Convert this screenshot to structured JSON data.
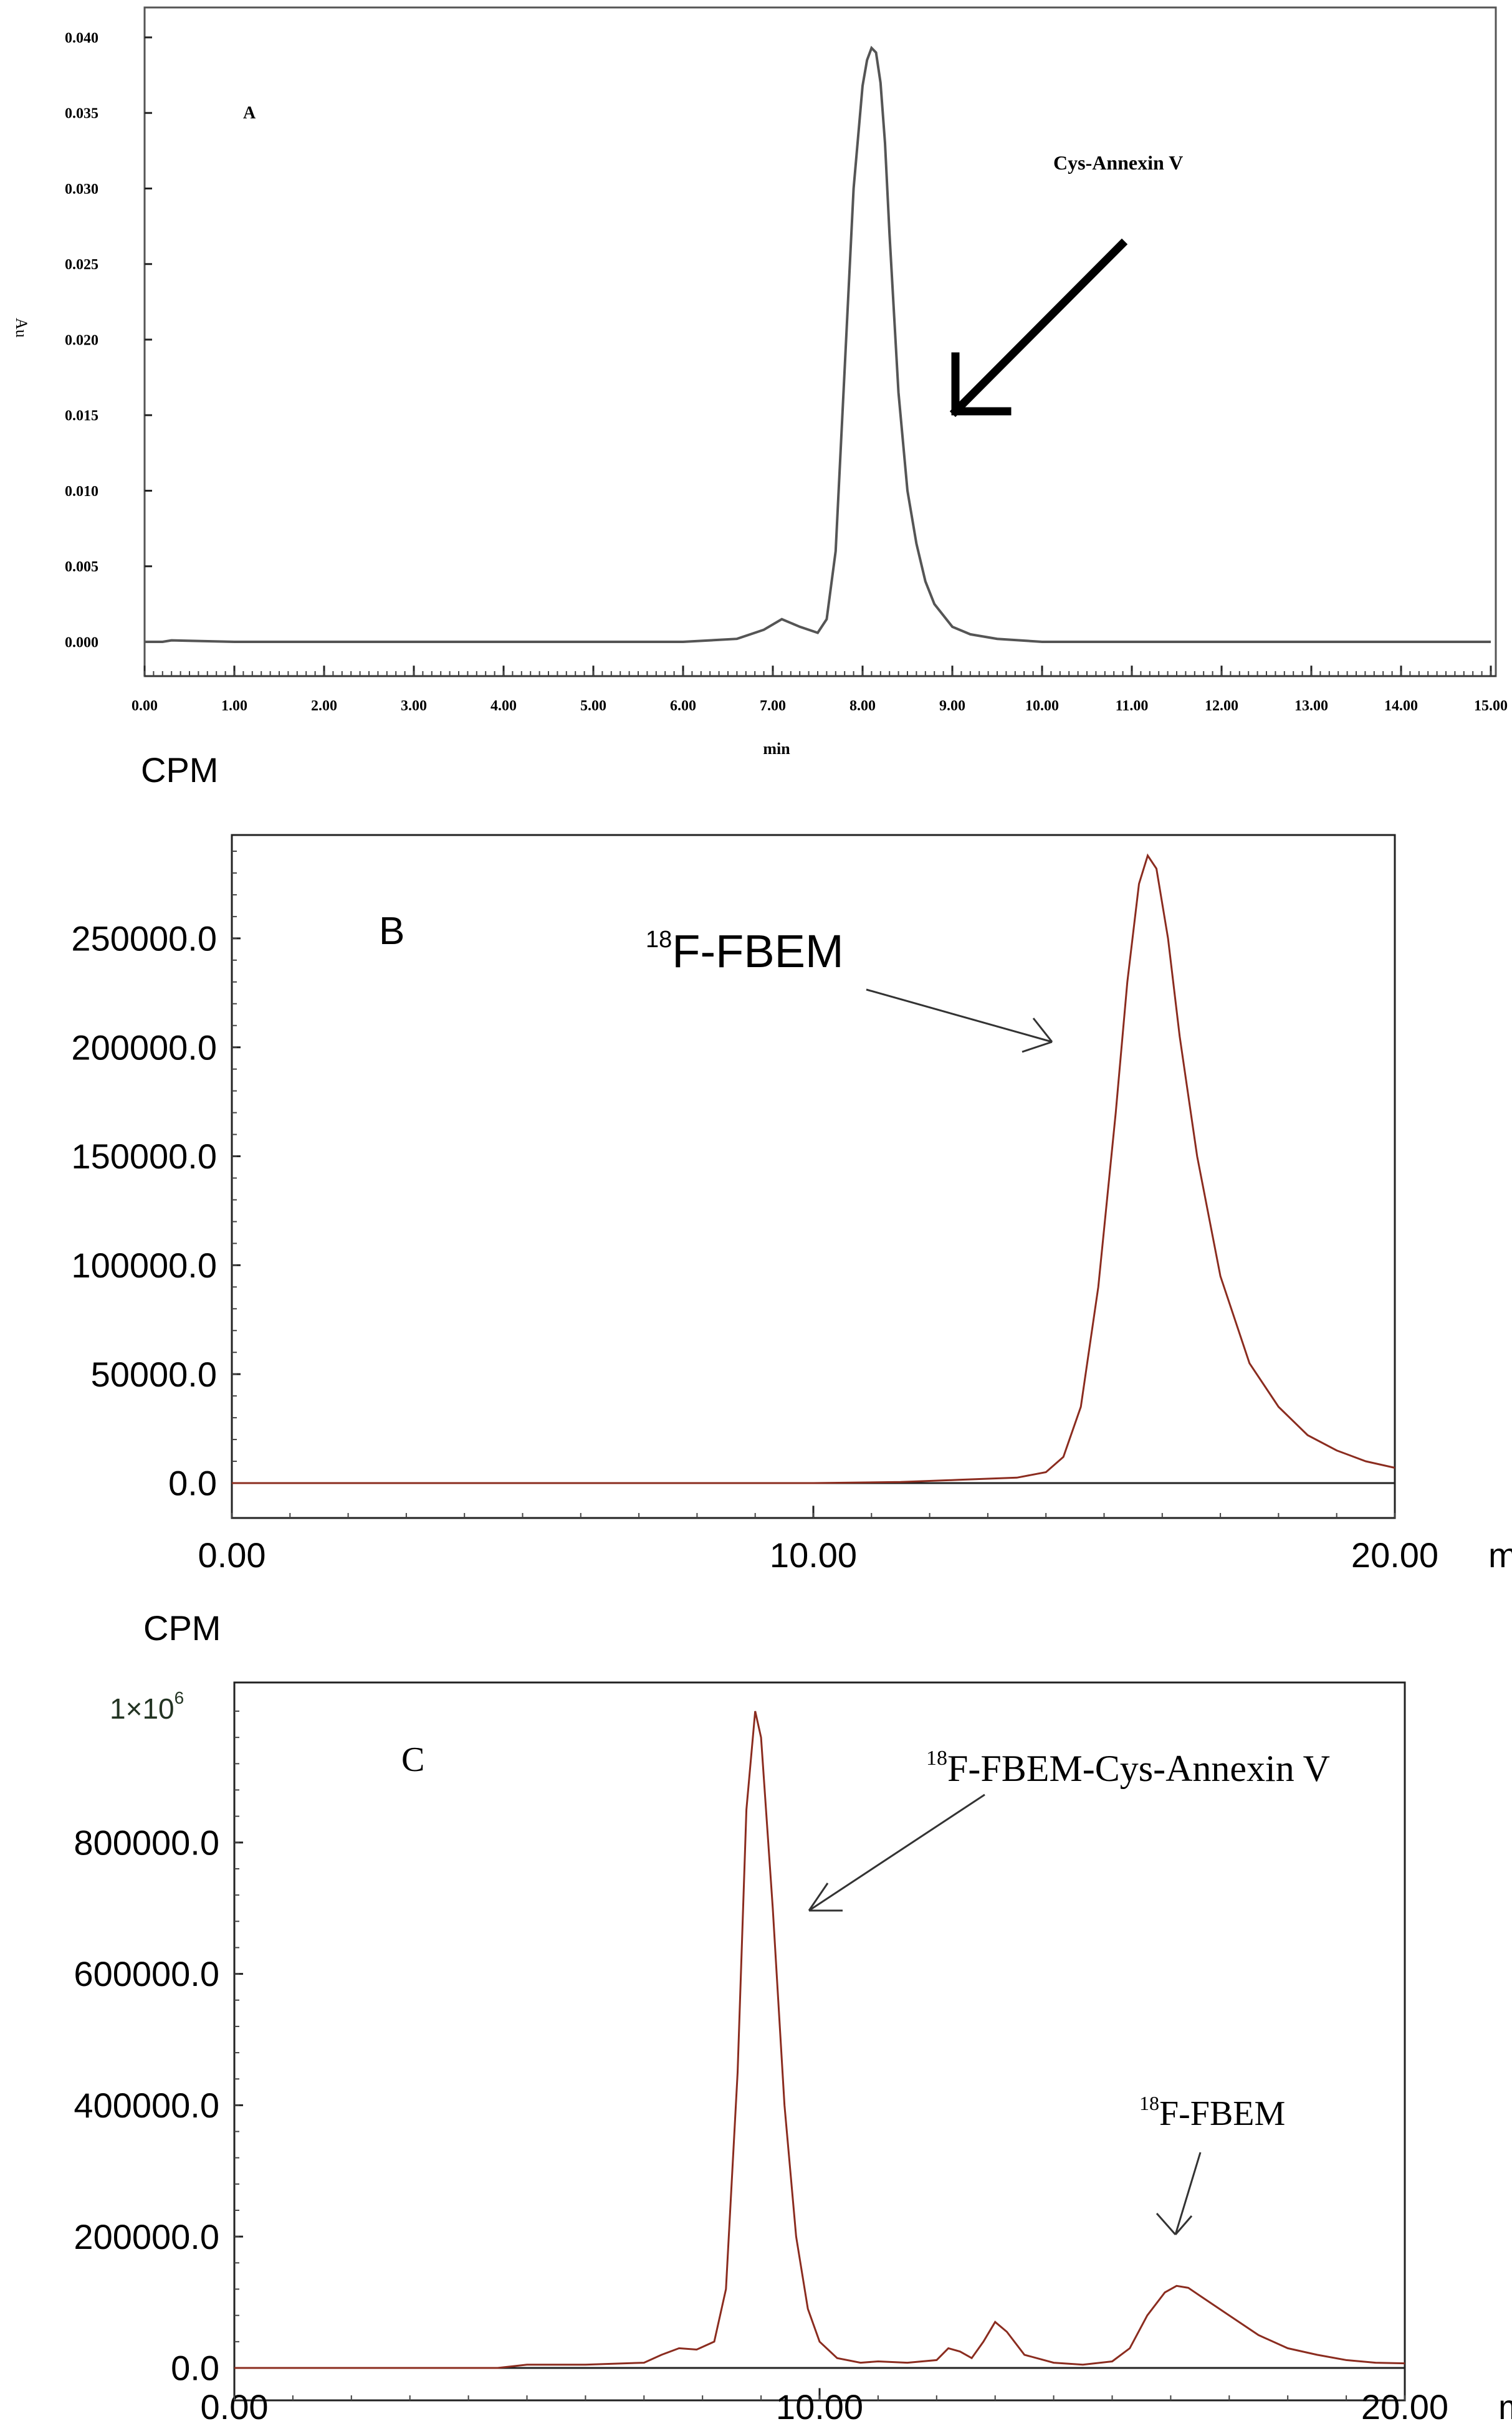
{
  "chart_data": [
    {
      "id": "A",
      "type": "line",
      "panel_label": "A",
      "ylabel": "Au",
      "xlabel": "min",
      "xlim": [
        0,
        15
      ],
      "ylim": [
        0,
        0.04
      ],
      "x_ticks": [
        "0.00",
        "1.00",
        "2.00",
        "3.00",
        "4.00",
        "5.00",
        "6.00",
        "7.00",
        "8.00",
        "9.00",
        "10.00",
        "11.00",
        "12.00",
        "13.00",
        "14.00",
        "15.00"
      ],
      "x_tick_values": [
        0,
        1,
        2,
        3,
        4,
        5,
        6,
        7,
        8,
        9,
        10,
        11,
        12,
        13,
        14,
        15
      ],
      "y_ticks": [
        "0.000",
        "0.005",
        "0.010",
        "0.015",
        "0.020",
        "0.025",
        "0.030",
        "0.035",
        "0.040"
      ],
      "y_tick_values": [
        0,
        0.005,
        0.01,
        0.015,
        0.02,
        0.025,
        0.03,
        0.035,
        0.04
      ],
      "annotation": {
        "text": "Cys-Annexin V",
        "points_to_x": 9.0,
        "points_to_y": 0.015
      },
      "color": "#555555",
      "series": [
        {
          "x": [
            0,
            0.2,
            0.3,
            1,
            3,
            5,
            6,
            6.6,
            6.9,
            7.1,
            7.3,
            7.5,
            7.6,
            7.7,
            7.8,
            7.9,
            8.0,
            8.05,
            8.1,
            8.15,
            8.2,
            8.25,
            8.3,
            8.4,
            8.5,
            8.6,
            8.7,
            8.8,
            9.0,
            9.2,
            9.5,
            10,
            11,
            12,
            12.5,
            15
          ],
          "y": [
            0,
            0,
            0.0001,
            0,
            0,
            0,
            0,
            0.0002,
            0.0008,
            0.0015,
            0.001,
            0.0006,
            0.0015,
            0.006,
            0.018,
            0.03,
            0.0368,
            0.0385,
            0.0393,
            0.039,
            0.037,
            0.033,
            0.027,
            0.0165,
            0.01,
            0.0065,
            0.004,
            0.0025,
            0.001,
            0.0005,
            0.0002,
            0,
            0,
            0,
            0,
            0
          ]
        }
      ]
    },
    {
      "id": "B",
      "type": "line",
      "panel_label": "B",
      "ylabel": "CPM",
      "xlabel": "mins",
      "xlim": [
        0,
        20
      ],
      "ylim": [
        0,
        290000
      ],
      "x_ticks": [
        "0.00",
        "10.00",
        "20.00"
      ],
      "x_tick_values": [
        0,
        10,
        20
      ],
      "y_ticks": [
        "0.0",
        "50000.0",
        "100000.0",
        "150000.0",
        "200000.0",
        "250000.0"
      ],
      "y_tick_values": [
        0,
        50000,
        100000,
        150000,
        200000,
        250000
      ],
      "annotation": {
        "text_sup": "18",
        "text": "F-FBEM",
        "points_to_x": 14.2,
        "points_to_y": 202000
      },
      "color": "#8b2c1f",
      "series": [
        {
          "x": [
            0,
            10,
            11.5,
            12.5,
            13,
            13.5,
            14,
            14.3,
            14.6,
            14.9,
            15.2,
            15.4,
            15.6,
            15.75,
            15.9,
            16.1,
            16.3,
            16.6,
            17,
            17.5,
            18,
            18.5,
            19,
            19.5,
            20
          ],
          "y": [
            0,
            0,
            500,
            1500,
            2000,
            2500,
            5000,
            12000,
            35000,
            90000,
            170000,
            230000,
            275000,
            288000,
            282000,
            250000,
            205000,
            150000,
            95000,
            55000,
            35000,
            22000,
            15000,
            10000,
            7000
          ]
        }
      ]
    },
    {
      "id": "C",
      "type": "line",
      "panel_label": "C",
      "ylabel": "CPM",
      "xlabel": "min",
      "xlim": [
        0,
        20
      ],
      "ylim": [
        0,
        1000000
      ],
      "x_ticks": [
        "0.00",
        "10.00",
        "20.00"
      ],
      "x_tick_values": [
        0,
        10,
        20
      ],
      "y_ticks": [
        "0.0",
        "200000.0",
        "400000.0",
        "600000.0",
        "800000.0"
      ],
      "y_tick_values": [
        0,
        200000,
        400000,
        600000,
        800000
      ],
      "top_tick": {
        "base": "1×10",
        "sup": "6",
        "value": 1000000
      },
      "annotations": [
        {
          "text_sup": "18",
          "text": "F-FBEM-Cys-Annexin V",
          "points_to_x": 9.8,
          "points_to_y": 680000
        },
        {
          "text_sup": "18",
          "text": "F-FBEM",
          "points_to_x": 16.2,
          "points_to_y": 155000
        }
      ],
      "color": "#8b2c1f",
      "series": [
        {
          "x": [
            0,
            4.5,
            5,
            5.5,
            6,
            7,
            7.3,
            7.6,
            7.9,
            8.2,
            8.4,
            8.6,
            8.75,
            8.9,
            9.0,
            9.2,
            9.4,
            9.6,
            9.8,
            10.0,
            10.3,
            10.7,
            11,
            11.5,
            12,
            12.2,
            12.4,
            12.6,
            12.8,
            13,
            13.2,
            13.5,
            14,
            14.5,
            15,
            15.3,
            15.6,
            15.9,
            16.1,
            16.3,
            16.5,
            17,
            17.5,
            18,
            18.5,
            19,
            19.5,
            20
          ],
          "y": [
            0,
            0,
            5000,
            5000,
            5000,
            8000,
            20000,
            30000,
            28000,
            40000,
            120000,
            450000,
            850000,
            1000000,
            960000,
            700000,
            400000,
            200000,
            90000,
            40000,
            15000,
            8000,
            10000,
            8000,
            12000,
            30000,
            25000,
            15000,
            40000,
            70000,
            55000,
            20000,
            8000,
            5000,
            10000,
            30000,
            80000,
            115000,
            125000,
            122000,
            110000,
            80000,
            50000,
            30000,
            20000,
            12000,
            8000,
            7000
          ]
        }
      ]
    }
  ]
}
